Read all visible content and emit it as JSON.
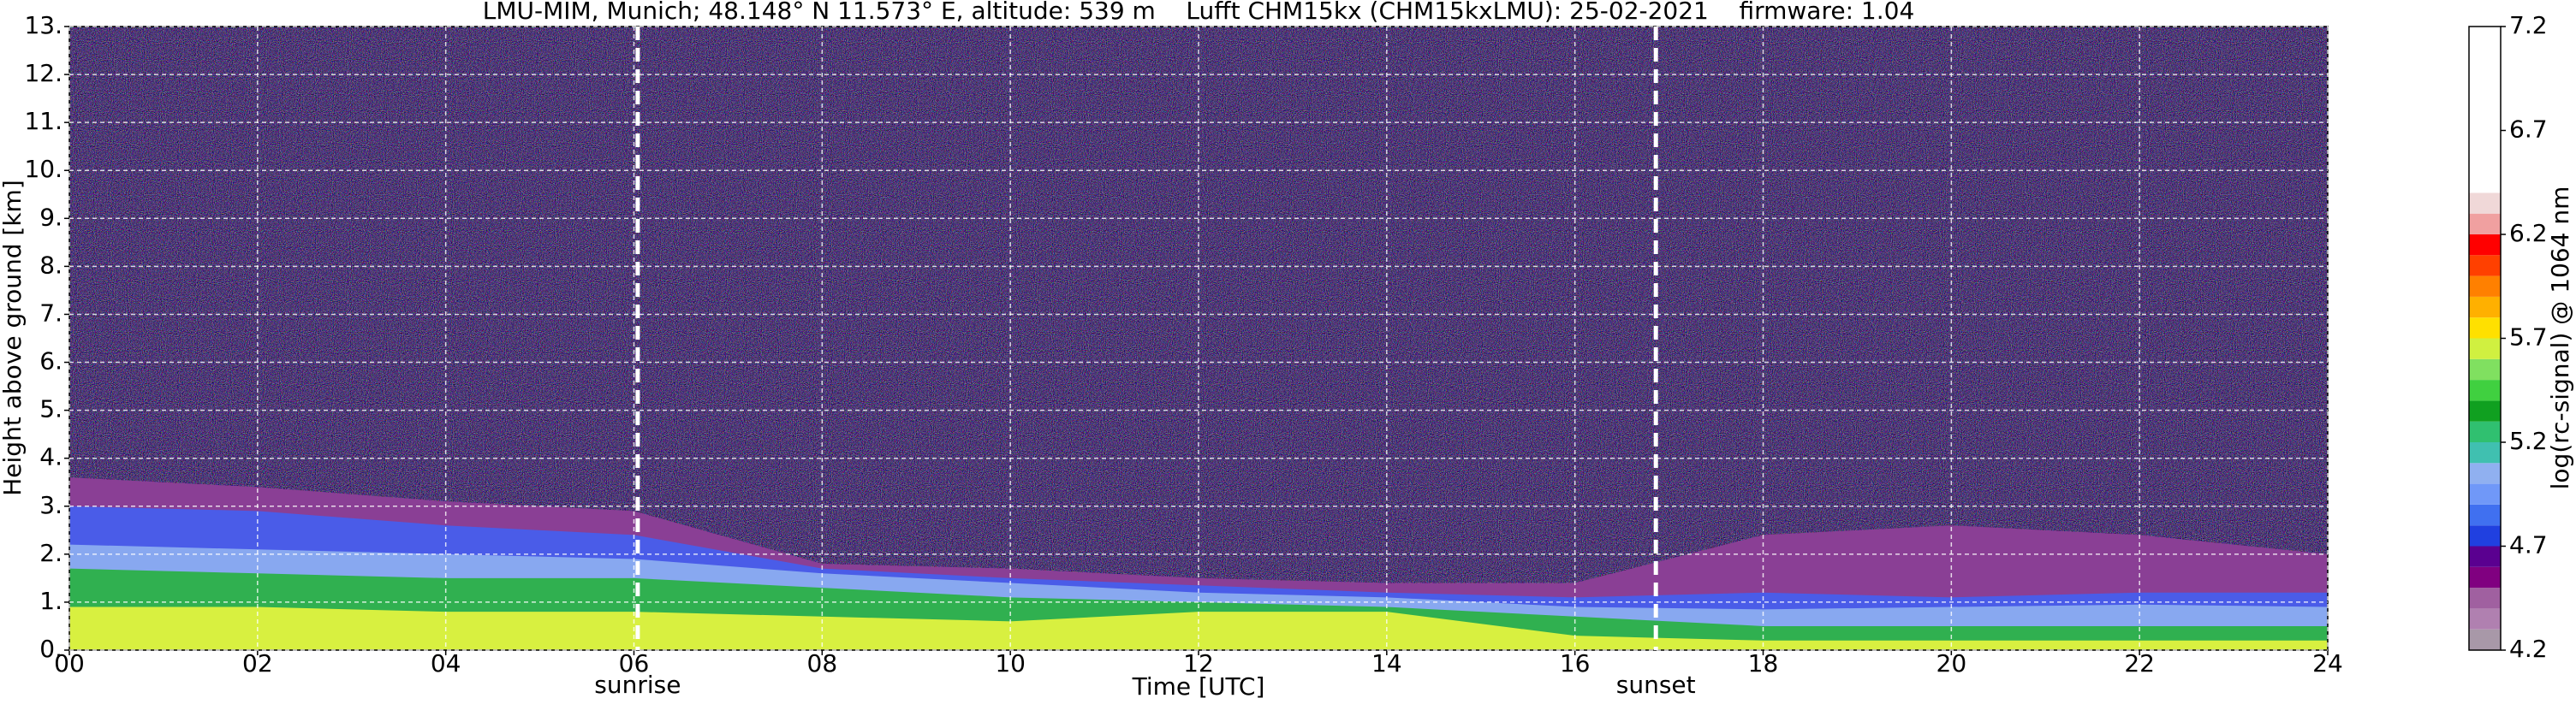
{
  "chart_data": {
    "type": "heatmap",
    "title": "LMU-MIM, Munich; 48.148° N 11.573° E, altitude: 539 m    Lufft CHM15kx (CHM15kxLMU): 25-02-2021    firmware: 1.04",
    "xlabel": "Time [UTC]",
    "ylabel": "Height above ground [km]",
    "xlim": [
      0,
      24
    ],
    "ylim": [
      0,
      13
    ],
    "xticks": [
      {
        "value": 0,
        "label": "00"
      },
      {
        "value": 2,
        "label": "02"
      },
      {
        "value": 4,
        "label": "04"
      },
      {
        "value": 6,
        "label": "06"
      },
      {
        "value": 8,
        "label": "08"
      },
      10,
      12,
      14,
      16,
      18,
      20,
      22,
      24
    ],
    "yticks": [
      {
        "value": 0,
        "label": "0."
      },
      {
        "value": 1,
        "label": "1."
      },
      {
        "value": 2,
        "label": "2."
      },
      {
        "value": 3,
        "label": "3."
      },
      {
        "value": 4,
        "label": "4."
      },
      {
        "value": 5,
        "label": "5."
      },
      {
        "value": 6,
        "label": "6."
      },
      {
        "value": 7,
        "label": "7."
      },
      {
        "value": 8,
        "label": "8."
      },
      {
        "value": 9,
        "label": "9."
      },
      {
        "value": 10,
        "label": "10."
      },
      {
        "value": 11,
        "label": "11."
      },
      {
        "value": 12,
        "label": "12."
      },
      {
        "value": 13,
        "label": "13."
      }
    ],
    "grid": true,
    "background": "#2a1c48",
    "x": [
      0,
      2,
      4,
      6,
      8,
      10,
      12,
      14,
      16,
      18,
      20,
      22,
      24
    ],
    "layers": [
      {
        "color": "#8a3f95",
        "values": [
          3.6,
          3.4,
          3.1,
          2.9,
          1.8,
          1.7,
          1.5,
          1.4,
          1.4,
          2.4,
          2.6,
          2.4,
          2.0
        ]
      },
      {
        "color": "#4a5ce8",
        "values": [
          3.0,
          2.9,
          2.6,
          2.4,
          1.7,
          1.5,
          1.35,
          1.2,
          1.1,
          1.2,
          1.1,
          1.2,
          1.2
        ]
      },
      {
        "color": "#88a8f0",
        "values": [
          2.2,
          2.1,
          2.0,
          1.9,
          1.6,
          1.4,
          1.2,
          1.1,
          0.9,
          0.85,
          0.9,
          0.95,
          0.9
        ]
      },
      {
        "color": "#30b050",
        "values": [
          1.7,
          1.6,
          1.5,
          1.5,
          1.3,
          1.1,
          1.0,
          0.9,
          0.7,
          0.5,
          0.5,
          0.5,
          0.5
        ]
      },
      {
        "color": "#d8f040",
        "values": [
          0.9,
          0.9,
          0.8,
          0.8,
          0.7,
          0.6,
          0.8,
          0.8,
          0.3,
          0.2,
          0.2,
          0.2,
          0.2
        ]
      }
    ],
    "annotations": [
      {
        "text": "sunrise",
        "x": 6.04
      },
      {
        "text": "sunset",
        "x": 16.86
      }
    ],
    "colorbar": {
      "label": "log(rc-signal) @ 1064 nm",
      "lim": [
        4.2,
        7.2
      ],
      "ticks": [
        4.2,
        4.7,
        5.2,
        5.7,
        6.2,
        6.7,
        7.2
      ],
      "levels": [
        4.2,
        4.3,
        4.4,
        4.5,
        4.6,
        4.7,
        4.8,
        4.9,
        5.0,
        5.1,
        5.2,
        5.3,
        5.4,
        5.5,
        5.6,
        5.7,
        5.8,
        5.9,
        6.0,
        6.1,
        6.2,
        6.3,
        6.4,
        7.2
      ],
      "colors": [
        "#a898a8",
        "#b080b0",
        "#a060a0",
        "#800080",
        "#5a0090",
        "#2040e0",
        "#4070f0",
        "#7098f8",
        "#90b0f0",
        "#40c0b0",
        "#30c070",
        "#10a020",
        "#40d040",
        "#80e060",
        "#d0f040",
        "#ffe000",
        "#ffb000",
        "#ff8000",
        "#ff4000",
        "#ff0000",
        "#f0a0a0",
        "#f0d8d8",
        "#ffffff"
      ]
    }
  }
}
